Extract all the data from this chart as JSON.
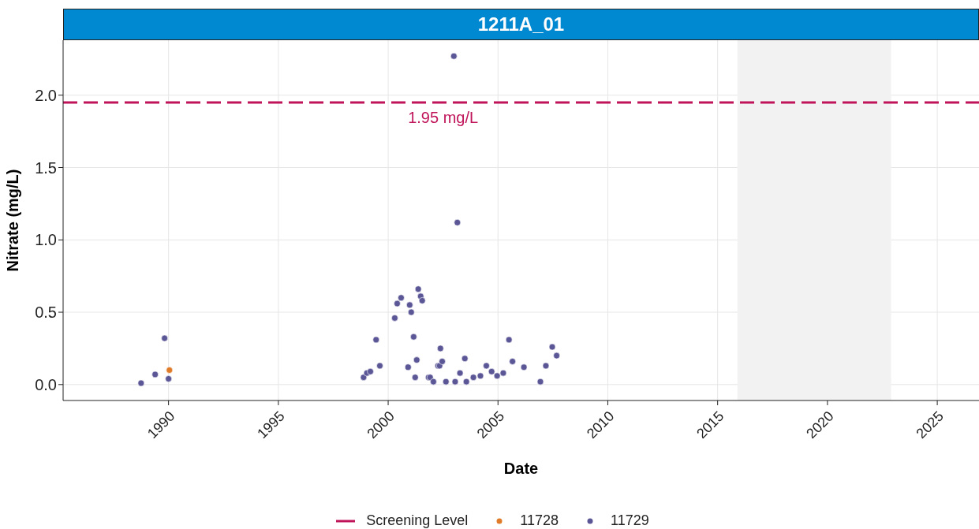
{
  "chart_data": {
    "type": "scatter",
    "title": "1211A_01",
    "xlabel": "Date",
    "ylabel": "Nitrate (mg/L)",
    "xlim": [
      1985.2,
      2026.9
    ],
    "xticks": [
      1990,
      1995,
      2000,
      2005,
      2010,
      2015,
      2020,
      2025
    ],
    "ylim": [
      -0.11,
      2.38
    ],
    "yticks": [
      {
        "value": 0,
        "label": "0.0"
      },
      {
        "value": 0.5,
        "label": "0.5"
      },
      {
        "value": 1,
        "label": "1.0"
      },
      {
        "value": 1.5,
        "label": "1.5"
      },
      {
        "value": 2,
        "label": "2.0"
      }
    ],
    "grid": true,
    "legend": "bottom",
    "marker": "circle",
    "ref_lines": [
      {
        "axis": "y",
        "value": 1.95,
        "label": "Screening Level",
        "color": "#c0145a",
        "line_style": "dashed"
      }
    ],
    "bands": [
      {
        "axis": "x",
        "from": 2015.9,
        "to": 2022.9,
        "color": "#f2f2f2"
      }
    ],
    "annotations": [
      {
        "text": "1.95 mg/L",
        "x": 2002.5,
        "y": 1.95
      }
    ],
    "series": [
      {
        "name": "11728",
        "color": "#e07b2a",
        "x": [
          1990.04
        ],
        "values": [
          0.1
        ]
      },
      {
        "name": "11729",
        "color": "#5b5796",
        "x": [
          1988.75,
          1989.39,
          1989.82,
          1990.0,
          1998.88,
          1999.03,
          1999.19,
          1999.45,
          1999.62,
          2000.3,
          2000.41,
          2000.59,
          2000.91,
          2000.98,
          2001.05,
          2001.16,
          2001.23,
          2001.3,
          2001.37,
          2001.48,
          2001.55,
          2001.84,
          2001.91,
          2002.06,
          2002.27,
          2002.34,
          2002.38,
          2002.46,
          2002.63,
          2002.99,
          2003.05,
          2003.15,
          2003.27,
          2003.49,
          2003.56,
          2003.88,
          2004.2,
          2004.47,
          2004.71,
          2004.96,
          2005.24,
          2005.5,
          2005.66,
          2006.18,
          2006.93,
          2007.18,
          2007.47,
          2007.67
        ],
        "values": [
          0.01,
          0.07,
          0.32,
          0.04,
          0.05,
          0.08,
          0.09,
          0.31,
          0.13,
          0.46,
          0.56,
          0.6,
          0.12,
          0.55,
          0.5,
          0.33,
          0.05,
          0.17,
          0.66,
          0.61,
          0.58,
          0.05,
          0.05,
          0.02,
          0.13,
          0.13,
          0.25,
          0.16,
          0.02,
          2.27,
          0.02,
          1.12,
          0.08,
          0.18,
          0.02,
          0.05,
          0.06,
          0.13,
          0.09,
          0.06,
          0.08,
          0.31,
          0.16,
          0.12,
          0.02,
          0.13,
          0.26,
          0.2
        ]
      }
    ]
  }
}
